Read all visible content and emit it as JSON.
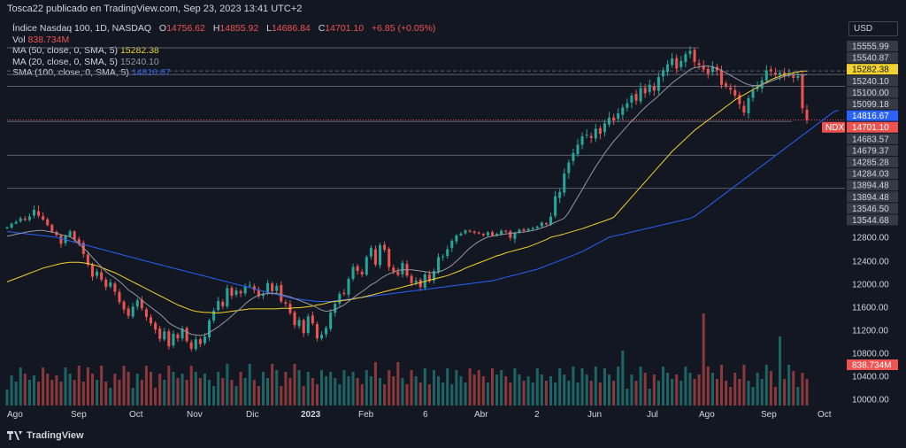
{
  "header": {
    "published_by": "Tosca22 publicado en TradingView.com, Sep 23, 2023 13:41 UTC+2"
  },
  "legend": {
    "symbol": "Índice Nasdaq 100, 1D, NASDAQ",
    "open_label": "O",
    "open": "14756.62",
    "high_label": "H",
    "high": "14855.92",
    "low_label": "L",
    "low": "14686.84",
    "close_label": "C",
    "close": "14701.10",
    "change": "+6.85 (+0.05%)",
    "vol_label": "Vol",
    "vol": "838.734M",
    "ma50_label": "MA (50, close, 0, SMA, 5)",
    "ma50": "15282.38",
    "ma20_label": "MA (20, close, 0, SMA, 5)",
    "ma20": "15240.10",
    "sma100_label": "SMA (100, close, 0, SMA, 5)",
    "sma100": "14816.67"
  },
  "currency": "USD",
  "footer": {
    "brand": "TradingView"
  },
  "colors": {
    "background": "#131722",
    "up": "#26a69a",
    "down": "#ef5350",
    "ma50": "#f2d22e",
    "ma20": "#9598a1",
    "sma100": "#2962ff",
    "text": "#d1d4dc"
  },
  "chart_data": {
    "type": "candlestick",
    "y_ticks": [
      "12800.00",
      "12400.00",
      "12000.00",
      "11600.00",
      "11200.00",
      "10800.00",
      "10400.00",
      "10000.00"
    ],
    "x_ticks": [
      "Ago",
      "Sep",
      "Oct",
      "Nov",
      "Dic",
      "2023",
      "Feb",
      "6",
      "Abr",
      "2",
      "Jun",
      "Jul",
      "Ago",
      "Sep",
      "Oct"
    ],
    "price_labels": [
      {
        "text": "15555.99",
        "kind": "plain"
      },
      {
        "text": "15540.87",
        "kind": "plain"
      },
      {
        "text": "15282.38",
        "kind": "ma50"
      },
      {
        "text": "15240.10",
        "kind": "plain"
      },
      {
        "text": "15100.00",
        "kind": "plain"
      },
      {
        "text": "15099.18",
        "kind": "plain"
      },
      {
        "text": "14816.67",
        "kind": "sma100"
      },
      {
        "text": "14701.10",
        "kind": "last"
      },
      {
        "text": "14683.57",
        "kind": "plain"
      },
      {
        "text": "14679.37",
        "kind": "plain"
      },
      {
        "text": "14285.28",
        "kind": "plain"
      },
      {
        "text": "14284.03",
        "kind": "plain"
      },
      {
        "text": "13894.48",
        "kind": "plain"
      },
      {
        "text": "13894.48",
        "kind": "plain"
      },
      {
        "text": "13546.50",
        "kind": "plain"
      },
      {
        "text": "13544.68",
        "kind": "plain"
      }
    ],
    "last_symbol": "NDX",
    "volume_last": "838.734M",
    "horizontal_levels": [
      15555.99,
      15240.1,
      15100.0,
      14683.57,
      14284.03,
      13894.48
    ],
    "price_series": [
      13180,
      13320,
      13390,
      13520,
      13460,
      13560,
      13640,
      13570,
      13480,
      13260,
      13020,
      12880,
      12690,
      12850,
      13030,
      12760,
      12690,
      12520,
      12340,
      12130,
      12220,
      12080,
      11950,
      12030,
      11870,
      11690,
      11560,
      11450,
      11610,
      11720,
      11580,
      11430,
      11320,
      11210,
      11050,
      11180,
      10920,
      11140,
      11060,
      11230,
      11010,
      10880,
      11040,
      10960,
      11090,
      11370,
      11540,
      11710,
      11620,
      11930,
      11800,
      11890,
      11840,
      11960,
      11980,
      11900,
      11790,
      11830,
      12020,
      11880,
      11970,
      11700,
      11660,
      11500,
      11290,
      11380,
      11150,
      11440,
      11320,
      11060,
      11120,
      11240,
      11510,
      11660,
      11830,
      11830,
      12090,
      12300,
      12230,
      12170,
      12470,
      12620,
      12340,
      12670,
      12590,
      12300,
      12220,
      12160,
      12370,
      12150,
      12020,
      12060,
      11950,
      12170,
      12050,
      12230,
      12470,
      12480,
      12600,
      12740,
      12870,
      12940,
      13060,
      13020,
      12970,
      12950,
      12880,
      12990,
      12870,
      12930,
      13050,
      13020,
      12790,
      12980,
      13090,
      13040,
      13120,
      13150,
      13210,
      13360,
      13290,
      13560,
      13800,
      13850,
      14070,
      14200,
      14310,
      14410,
      14510,
      14530,
      14490,
      14600,
      14540,
      14660,
      14730,
      14700,
      14780,
      14850,
      14900,
      14990,
      14930,
      15080,
      15020,
      15120,
      15050,
      15210,
      15290,
      15360,
      15430,
      15310,
      15400,
      15480,
      15520,
      15390,
      15350,
      15300,
      15250,
      15340,
      15290,
      15120,
      15100,
      15060,
      14990,
      14890,
      14790,
      14960,
      15050,
      15090,
      15170,
      15290,
      15280,
      15240,
      15260,
      15220,
      15240,
      15200,
      15220,
      14840,
      14701
    ],
    "ma20": [
      12840,
      12870,
      12920,
      12950,
      12990,
      13020,
      13040,
      13060,
      13060,
      13030,
      13000,
      12960,
      12900,
      12860,
      12820,
      12760,
      12690,
      12620,
      12550,
      12460,
      12380,
      12300,
      12220,
      12160,
      12110,
      12050,
      11980,
      11900,
      11850,
      11790,
      11720,
      11660,
      11600,
      11540,
      11480,
      11410,
      11330,
      11280,
      11240,
      11210,
      11170,
      11130,
      11120,
      11110,
      11120,
      11160,
      11210,
      11260,
      11320,
      11380,
      11450,
      11520,
      11580,
      11660,
      11720,
      11770,
      11810,
      11830,
      11840,
      11840,
      11840,
      11820,
      11800,
      11780,
      11750,
      11720,
      11690,
      11660,
      11630,
      11590,
      11550,
      11530,
      11540,
      11560,
      11600,
      11640,
      11700,
      11760,
      11820,
      11870,
      11930,
      11990,
      12030,
      12090,
      12140,
      12180,
      12210,
      12240,
      12250,
      12250,
      12250,
      12240,
      12230,
      12220,
      12200,
      12200,
      12210,
      12240,
      12280,
      12330,
      12400,
      12470,
      12550,
      12620,
      12680,
      12730,
      12770,
      12810,
      12840,
      12870,
      12900,
      12930,
      12950,
      12970,
      12990,
      13000,
      13030,
      13060,
      13100,
      13160,
      13220,
      13290,
      13380,
      13450,
      13530,
      13610,
      13700,
      13790,
      13880,
      13970,
      14060,
      14150,
      14230,
      14310,
      14380,
      14450,
      14510,
      14570,
      14630,
      14690,
      14740,
      14800,
      14850,
      14900,
      14940,
      14990,
      15040,
      15090,
      15140,
      15180,
      15220,
      15260,
      15300,
      15320,
      15330,
      15340,
      15340,
      15330,
      15310,
      15290,
      15260,
      15230,
      15200,
      15170,
      15140,
      15120,
      15110,
      15110,
      15120,
      15140,
      15160,
      15180,
      15200,
      15220,
      15230,
      15240,
      15240,
      15230,
      15240
    ],
    "ma50": [
      12040,
      12070,
      12100,
      12130,
      12160,
      12190,
      12220,
      12250,
      12280,
      12300,
      12320,
      12340,
      12360,
      12370,
      12380,
      12380,
      12380,
      12370,
      12360,
      12340,
      12320,
      12290,
      12260,
      12230,
      12200,
      12160,
      12120,
      12080,
      12040,
      12000,
      11960,
      11920,
      11880,
      11840,
      11800,
      11760,
      11720,
      11680,
      11640,
      11610,
      11580,
      11550,
      11530,
      11520,
      11510,
      11510,
      11500,
      11500,
      11510,
      11520,
      11530,
      11540,
      11550,
      11560,
      11570,
      11570,
      11570,
      11570,
      11570,
      11570,
      11570,
      11580,
      11580,
      11580,
      11590,
      11590,
      11600,
      11610,
      11620,
      11640,
      11650,
      11670,
      11690,
      11700,
      11710,
      11720,
      11730,
      11740,
      11760,
      11770,
      11790,
      11810,
      11830,
      11850,
      11870,
      11890,
      11910,
      11930,
      11950,
      11970,
      11990,
      12010,
      12030,
      12050,
      12070,
      12090,
      12110,
      12130,
      12150,
      12180,
      12210,
      12240,
      12280,
      12310,
      12340,
      12370,
      12400,
      12430,
      12460,
      12490,
      12510,
      12540,
      12560,
      12580,
      12600,
      12620,
      12640,
      12670,
      12700,
      12730,
      12760,
      12800,
      12840,
      12880,
      12930,
      12980,
      13030,
      13080,
      13130,
      13190,
      13250,
      13310,
      13370,
      13430,
      13490,
      13550,
      13610,
      13670,
      13730,
      13790,
      13850,
      13910,
      13970,
      14030,
      14090,
      14150,
      14210,
      14270,
      14330,
      14380,
      14430,
      14480,
      14530,
      14580,
      14620,
      14660,
      14700,
      14740,
      14780,
      14820,
      14860,
      14900,
      14940,
      14970,
      15000,
      15030,
      15060,
      15090,
      15120,
      15150,
      15180,
      15200,
      15220,
      15240,
      15250,
      15260,
      15270,
      15280,
      15282
    ],
    "sma100": [
      13020,
      13000,
      12980,
      12960,
      12940,
      12920,
      12900,
      12880,
      12860,
      12840,
      12820,
      12800,
      12780,
      12760,
      12740,
      12720,
      12700,
      12680,
      12660,
      12640,
      12620,
      12600,
      12580,
      12560,
      12540,
      12520,
      12500,
      12480,
      12460,
      12440,
      12420,
      12400,
      12380,
      12360,
      12340,
      12320,
      12300,
      12280,
      12260,
      12240,
      12220,
      12200,
      12180,
      12160,
      12140,
      12120,
      12100,
      12080,
      12060,
      12040,
      12020,
      12000,
      11980,
      11960,
      11940,
      11920,
      11900,
      11880,
      11860,
      11840,
      11820,
      11800,
      11780,
      11760,
      11750,
      11740,
      11730,
      11720,
      11710,
      11700,
      11700,
      11700,
      11700,
      11710,
      11720,
      11730,
      11740,
      11750,
      11760,
      11770,
      11780,
      11790,
      11800,
      11810,
      11820,
      11830,
      11840,
      11850,
      11860,
      11870,
      11880,
      11890,
      11900,
      11910,
      11920,
      11930,
      11940,
      11950,
      11960,
      11970,
      11980,
      11990,
      12000,
      12010,
      12020,
      12030,
      12040,
      12050,
      12060,
      12080,
      12100,
      12120,
      12140,
      12160,
      12180,
      12200,
      12220,
      12240,
      12260,
      12290,
      12320,
      12350,
      12380,
      12410,
      12440,
      12470,
      12500,
      12530,
      12560,
      12600,
      12640,
      12680,
      12720,
      12760,
      12800,
      12840,
      12880,
      12920,
      12960,
      13000,
      13040,
      13080,
      13120,
      13160,
      13200,
      13240,
      13280,
      13320,
      13360,
      13400,
      13440,
      13480,
      13520,
      13560,
      13600,
      13640,
      13680,
      13720,
      13760,
      13800,
      13840,
      13880,
      13920,
      13960,
      14000,
      14040,
      14080,
      14120,
      14160,
      14200,
      14240,
      14280,
      14320,
      14360,
      14400,
      14440,
      14480,
      14520,
      14560,
      14600,
      14640,
      14680,
      14720,
      14760,
      14800,
      14816
    ],
    "volume_peaks": [
      {
        "index": 160,
        "value": "peak"
      }
    ]
  }
}
